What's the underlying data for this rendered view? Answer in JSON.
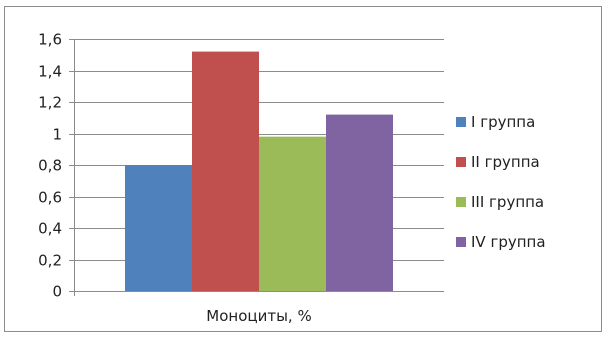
{
  "chart_data": {
    "type": "bar",
    "categories": [
      "Моноциты, %"
    ],
    "series": [
      {
        "name": "I группа",
        "values": [
          0.8
        ],
        "color": "#4f81bd"
      },
      {
        "name": "II группа",
        "values": [
          1.52
        ],
        "color": "#c0504d"
      },
      {
        "name": "III группа",
        "values": [
          0.98
        ],
        "color": "#9bbb59"
      },
      {
        "name": "IV группа",
        "values": [
          1.12
        ],
        "color": "#8064a2"
      }
    ],
    "xlabel": "Моноциты, %",
    "ylabel": "",
    "ylim": [
      0,
      1.6
    ],
    "yticks": [
      "0",
      "0,2",
      "0,4",
      "0,6",
      "0,8",
      "1",
      "1,2",
      "1,4",
      "1,6"
    ],
    "grid": true,
    "legend_position": "right"
  }
}
